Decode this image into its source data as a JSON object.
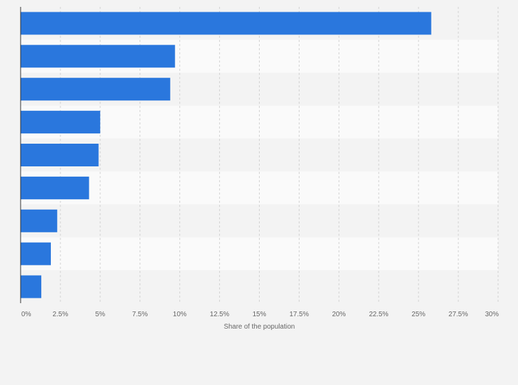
{
  "chart_data": {
    "type": "bar",
    "orientation": "horizontal",
    "title": "",
    "xlabel": "Share of the population",
    "ylabel": "",
    "xlim": [
      0,
      30
    ],
    "x_ticks": [
      0,
      2.5,
      5,
      7.5,
      10,
      12.5,
      15,
      17.5,
      20,
      22.5,
      25,
      27.5,
      30
    ],
    "x_tick_labels": [
      "0%",
      "2.5%",
      "5%",
      "7.5%",
      "10%",
      "12.5%",
      "15%",
      "17.5%",
      "20%",
      "22.5%",
      "25%",
      "27.5%",
      "30%"
    ],
    "categories": [
      "",
      "",
      "",
      "",
      "",
      "",
      "",
      "",
      ""
    ],
    "values": [
      25.8,
      9.7,
      9.4,
      5.0,
      4.9,
      4.3,
      2.3,
      1.9,
      1.3
    ],
    "bar_color": "#2a77dd",
    "grid": true
  }
}
